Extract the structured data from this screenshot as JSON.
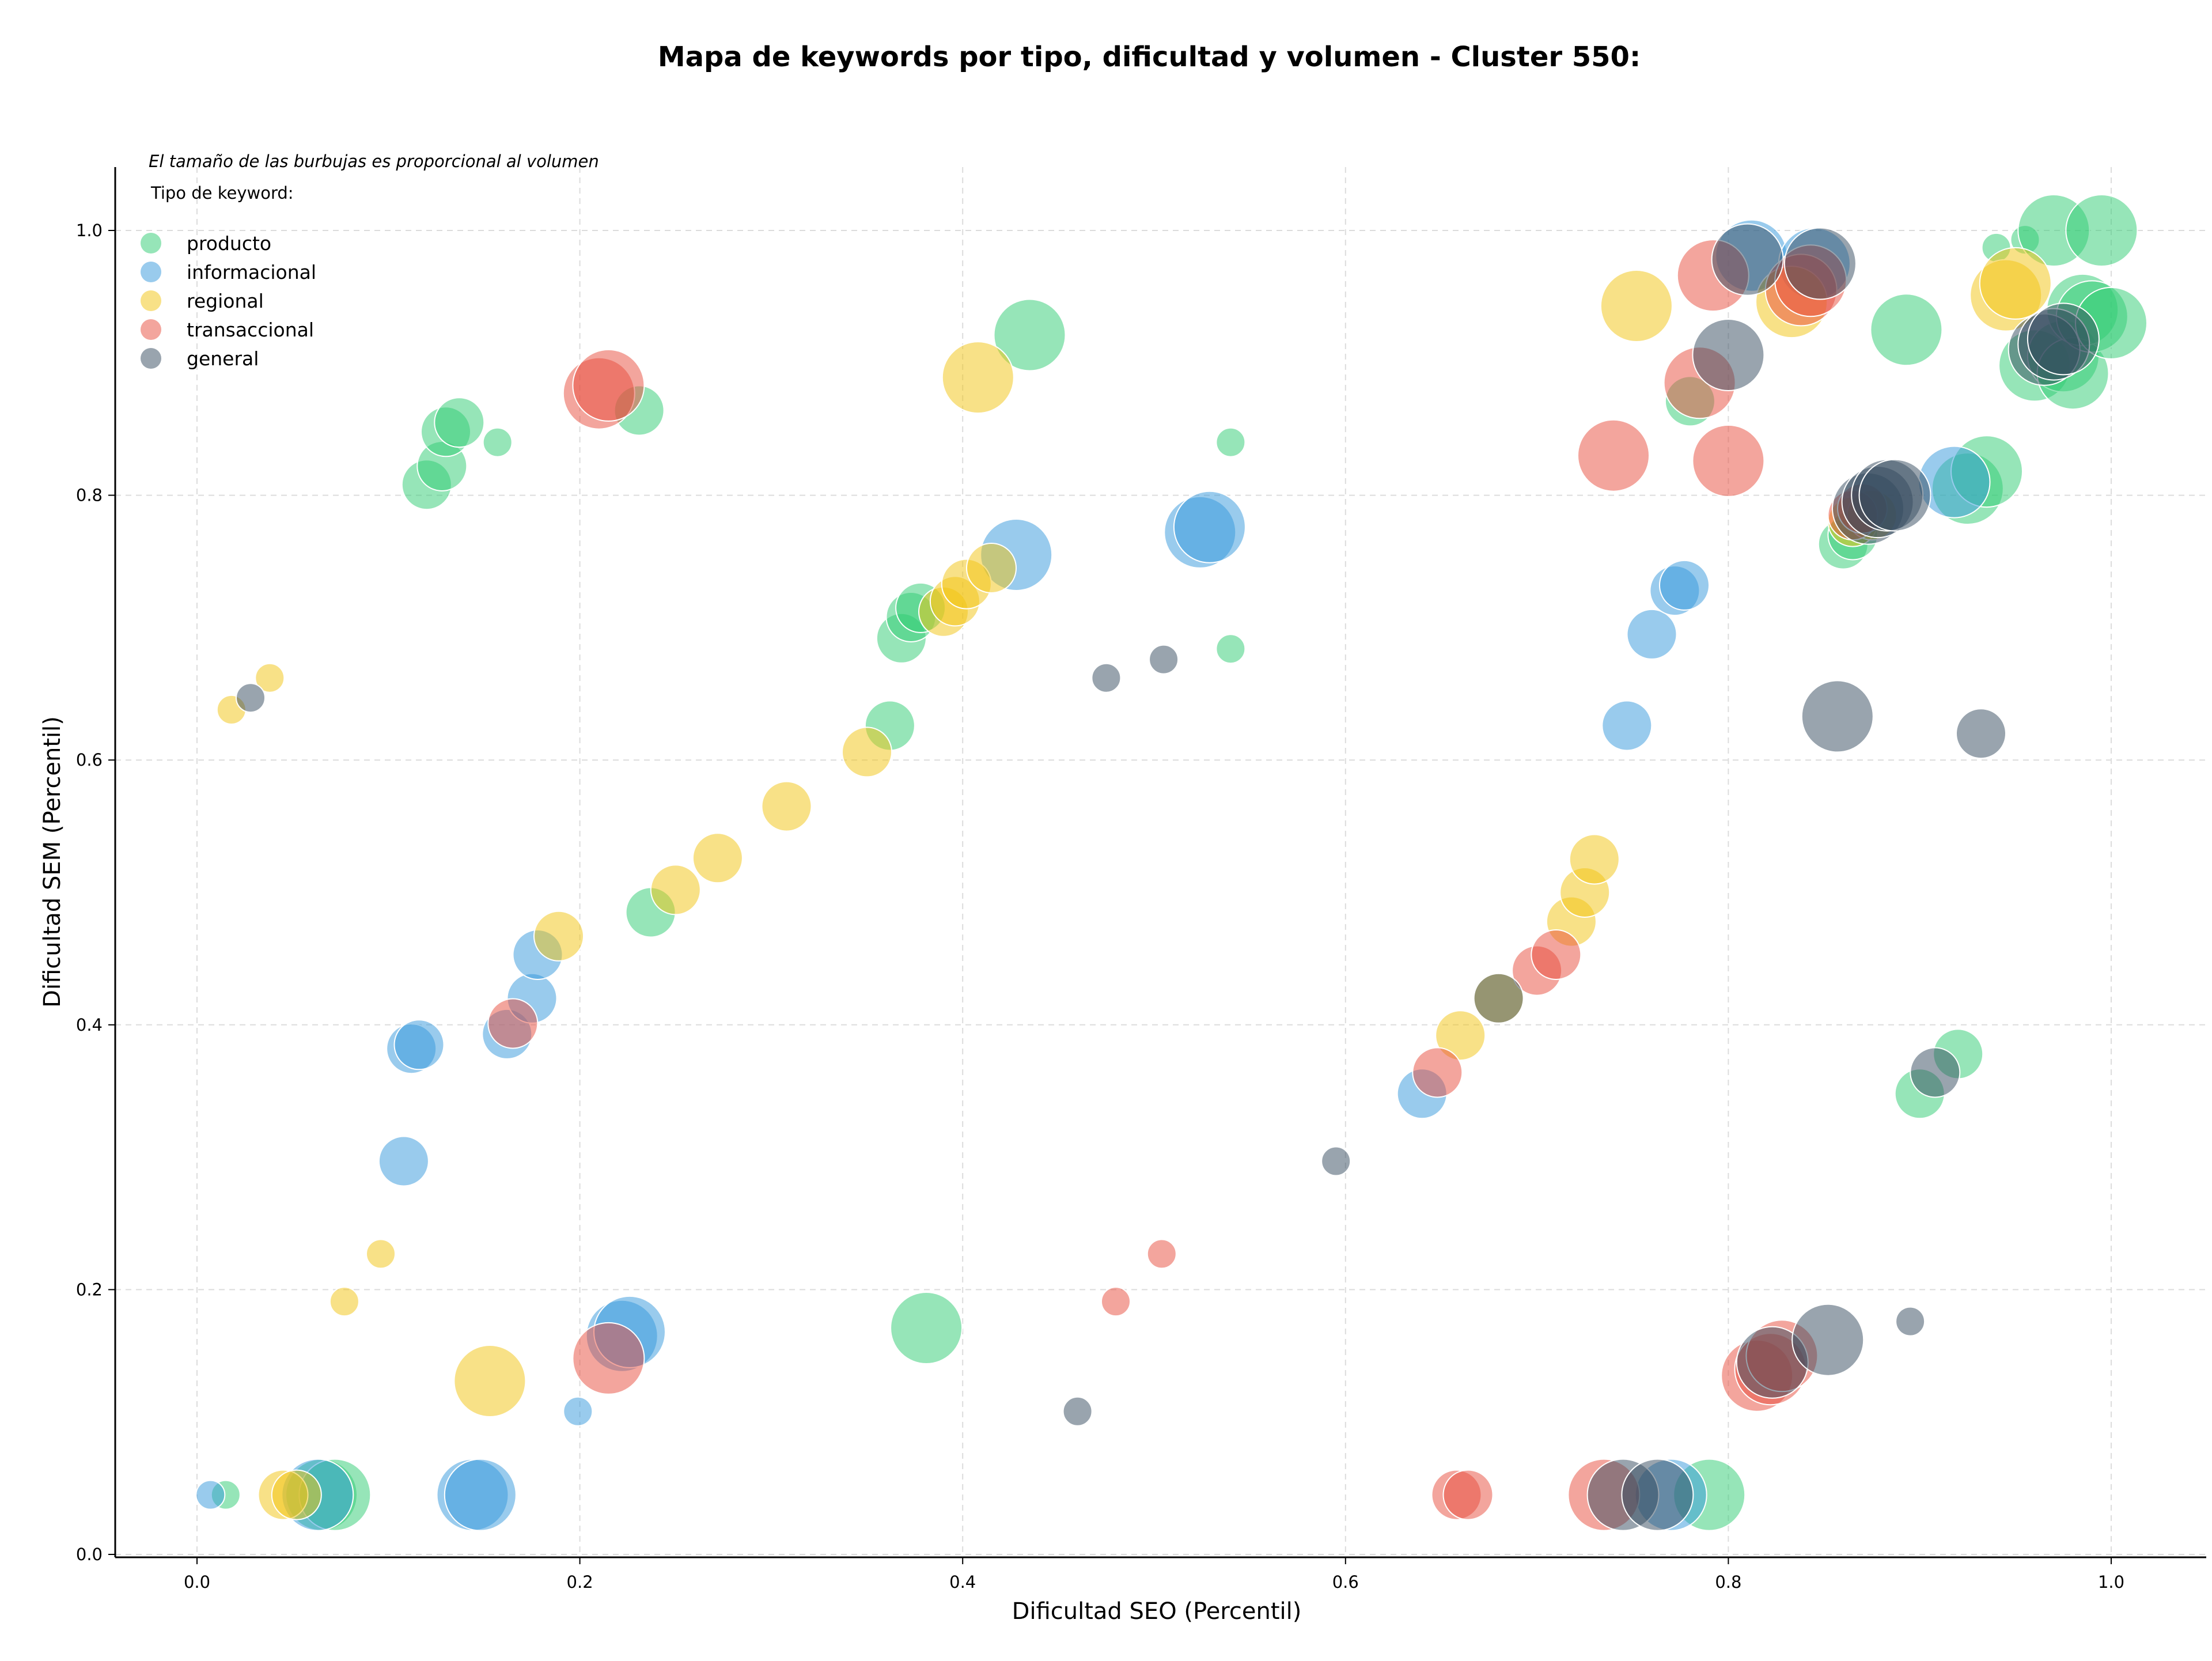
{
  "chart_data": {
    "type": "scatter",
    "title": "Mapa de keywords por tipo, dificultad y volumen - Cluster 550:",
    "xlabel": "Dificultad SEO (Percentil)",
    "ylabel": "Dificultad SEM (Percentil)",
    "xlim": [
      -0.04,
      1.05
    ],
    "ylim": [
      -0.005,
      1.045
    ],
    "xticks": [
      "0.0",
      "0.2",
      "0.4",
      "0.6",
      "0.8",
      "1.0"
    ],
    "yticks": [
      "0.0",
      "0.2",
      "0.4",
      "0.6",
      "0.8",
      "1.0"
    ],
    "grid": true,
    "annotation": "El tamaño de las burbujas es proporcional al volumen",
    "legend_title": "Tipo de keyword:",
    "legend_position": "top-left",
    "series": [
      {
        "name": "producto",
        "color": "#2ecc71",
        "points": [
          [
            0.015,
            0.045,
            1
          ],
          [
            0.065,
            0.045,
            3
          ],
          [
            0.072,
            0.045,
            3
          ],
          [
            0.12,
            0.808,
            2
          ],
          [
            0.128,
            0.822,
            2
          ],
          [
            0.13,
            0.848,
            2
          ],
          [
            0.137,
            0.855,
            2
          ],
          [
            0.157,
            0.84,
            1
          ],
          [
            0.231,
            0.864,
            2
          ],
          [
            0.237,
            0.485,
            2
          ],
          [
            0.362,
            0.626,
            2
          ],
          [
            0.368,
            0.692,
            2
          ],
          [
            0.373,
            0.708,
            2
          ],
          [
            0.378,
            0.715,
            2
          ],
          [
            0.381,
            0.171,
            3
          ],
          [
            0.435,
            0.921,
            3
          ],
          [
            0.54,
            0.84,
            1
          ],
          [
            0.54,
            0.684,
            1
          ],
          [
            0.78,
            0.871,
            2
          ],
          [
            0.79,
            0.045,
            3
          ],
          [
            0.86,
            0.763,
            2
          ],
          [
            0.865,
            0.77,
            2
          ],
          [
            0.893,
            0.925,
            3
          ],
          [
            0.9,
            0.348,
            2
          ],
          [
            0.92,
            0.378,
            2
          ],
          [
            0.925,
            0.805,
            3
          ],
          [
            0.935,
            0.818,
            3
          ],
          [
            0.94,
            0.987,
            1
          ],
          [
            0.955,
            0.993,
            1
          ],
          [
            0.96,
            0.898,
            3
          ],
          [
            0.97,
            1.0,
            3
          ],
          [
            0.975,
            0.905,
            3
          ],
          [
            0.98,
            0.892,
            3
          ],
          [
            0.985,
            0.94,
            3
          ],
          [
            0.99,
            0.935,
            3
          ],
          [
            0.995,
            1.0,
            3
          ],
          [
            1.0,
            0.93,
            3
          ]
        ]
      },
      {
        "name": "informacional",
        "color": "#3498db",
        "points": [
          [
            0.007,
            0.045,
            1
          ],
          [
            0.063,
            0.045,
            3
          ],
          [
            0.108,
            0.297,
            2
          ],
          [
            0.112,
            0.382,
            2
          ],
          [
            0.116,
            0.385,
            2
          ],
          [
            0.162,
            0.393,
            2
          ],
          [
            0.175,
            0.42,
            2
          ],
          [
            0.178,
            0.453,
            2
          ],
          [
            0.199,
            0.108,
            1
          ],
          [
            0.222,
            0.165,
            3
          ],
          [
            0.226,
            0.168,
            3
          ],
          [
            0.144,
            0.045,
            3
          ],
          [
            0.148,
            0.045,
            3
          ],
          [
            0.428,
            0.755,
            3
          ],
          [
            0.524,
            0.772,
            3
          ],
          [
            0.529,
            0.776,
            3
          ],
          [
            0.64,
            0.348,
            2
          ],
          [
            0.747,
            0.626,
            2
          ],
          [
            0.76,
            0.695,
            2
          ],
          [
            0.77,
            0.045,
            3
          ],
          [
            0.772,
            0.728,
            2
          ],
          [
            0.777,
            0.732,
            2
          ],
          [
            0.812,
            0.981,
            3
          ],
          [
            0.845,
            0.975,
            3
          ],
          [
            0.918,
            0.81,
            3
          ]
        ]
      },
      {
        "name": "regional",
        "color": "#f1c40f",
        "points": [
          [
            0.018,
            0.638,
            1
          ],
          [
            0.038,
            0.662,
            1
          ],
          [
            0.045,
            0.045,
            2
          ],
          [
            0.052,
            0.045,
            2
          ],
          [
            0.077,
            0.191,
            1
          ],
          [
            0.096,
            0.227,
            1
          ],
          [
            0.153,
            0.131,
            3
          ],
          [
            0.189,
            0.467,
            2
          ],
          [
            0.25,
            0.502,
            2
          ],
          [
            0.272,
            0.526,
            2
          ],
          [
            0.308,
            0.565,
            2
          ],
          [
            0.35,
            0.606,
            2
          ],
          [
            0.39,
            0.712,
            2
          ],
          [
            0.396,
            0.72,
            2
          ],
          [
            0.402,
            0.733,
            2
          ],
          [
            0.408,
            0.889,
            3
          ],
          [
            0.415,
            0.745,
            2
          ],
          [
            0.66,
            0.392,
            2
          ],
          [
            0.68,
            0.42,
            2
          ],
          [
            0.718,
            0.478,
            2
          ],
          [
            0.725,
            0.5,
            2
          ],
          [
            0.73,
            0.525,
            2
          ],
          [
            0.752,
            0.943,
            3
          ],
          [
            0.833,
            0.946,
            3
          ],
          [
            0.865,
            0.78,
            2
          ],
          [
            0.875,
            0.785,
            2
          ],
          [
            0.945,
            0.951,
            3
          ],
          [
            0.95,
            0.96,
            3
          ]
        ]
      },
      {
        "name": "transaccional",
        "color": "#e74c3c",
        "points": [
          [
            0.165,
            0.401,
            2
          ],
          [
            0.21,
            0.877,
            3
          ],
          [
            0.215,
            0.883,
            3
          ],
          [
            0.215,
            0.148,
            3
          ],
          [
            0.48,
            0.191,
            1
          ],
          [
            0.504,
            0.227,
            1
          ],
          [
            0.648,
            0.364,
            2
          ],
          [
            0.658,
            0.045,
            2
          ],
          [
            0.664,
            0.045,
            2
          ],
          [
            0.7,
            0.441,
            2
          ],
          [
            0.71,
            0.453,
            2
          ],
          [
            0.735,
            0.045,
            3
          ],
          [
            0.74,
            0.83,
            3
          ],
          [
            0.785,
            0.885,
            3
          ],
          [
            0.792,
            0.966,
            3
          ],
          [
            0.8,
            0.826,
            3
          ],
          [
            0.815,
            0.135,
            3
          ],
          [
            0.822,
            0.14,
            3
          ],
          [
            0.828,
            0.15,
            3
          ],
          [
            0.838,
            0.955,
            3
          ],
          [
            0.843,
            0.962,
            3
          ],
          [
            0.865,
            0.785,
            2
          ],
          [
            0.87,
            0.79,
            2
          ]
        ]
      },
      {
        "name": "general",
        "color": "#34495e",
        "points": [
          [
            0.028,
            0.647,
            1
          ],
          [
            0.46,
            0.108,
            1
          ],
          [
            0.475,
            0.662,
            1
          ],
          [
            0.505,
            0.676,
            1
          ],
          [
            0.595,
            0.297,
            1
          ],
          [
            0.68,
            0.42,
            2
          ],
          [
            0.745,
            0.045,
            3
          ],
          [
            0.763,
            0.045,
            3
          ],
          [
            0.8,
            0.906,
            3
          ],
          [
            0.81,
            0.978,
            3
          ],
          [
            0.823,
            0.145,
            3
          ],
          [
            0.848,
            0.975,
            3
          ],
          [
            0.852,
            0.162,
            3
          ],
          [
            0.857,
            0.633,
            3
          ],
          [
            0.873,
            0.79,
            3
          ],
          [
            0.878,
            0.795,
            3
          ],
          [
            0.883,
            0.8,
            3
          ],
          [
            0.887,
            0.8,
            3
          ],
          [
            0.895,
            0.176,
            1
          ],
          [
            0.908,
            0.364,
            2
          ],
          [
            0.932,
            0.62,
            2
          ],
          [
            0.965,
            0.91,
            3
          ],
          [
            0.97,
            0.914,
            3
          ],
          [
            0.975,
            0.918,
            3
          ]
        ]
      }
    ]
  }
}
